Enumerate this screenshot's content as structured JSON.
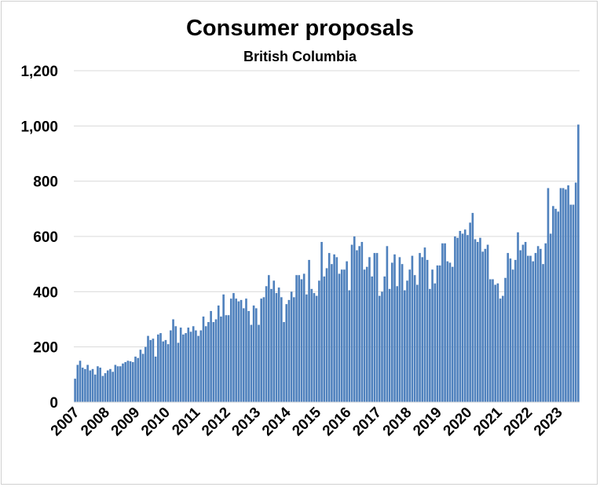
{
  "chart_data": {
    "type": "bar",
    "title": "Consumer proposals",
    "subtitle": "British Columbia",
    "xlabel": "",
    "ylabel": "",
    "ylim": [
      0,
      1200
    ],
    "yticks": [
      0,
      200,
      400,
      600,
      800,
      1000,
      1200
    ],
    "ytick_labels": [
      "0",
      "200",
      "400",
      "600",
      "800",
      "1,000",
      "1,200"
    ],
    "xtick_labels": [
      "2007",
      "2008",
      "2009",
      "2010",
      "2011",
      "2012",
      "2013",
      "2014",
      "2015",
      "2016",
      "2017",
      "2018",
      "2019",
      "2020",
      "2021",
      "2022",
      "2023"
    ],
    "grid": true,
    "bar_color": "#4f81bd",
    "series": [
      {
        "values": [
          85,
          135,
          150,
          125,
          120,
          135,
          115,
          120,
          100,
          130,
          125,
          95,
          105,
          115,
          120,
          110,
          135,
          130,
          130,
          140,
          145,
          150,
          148,
          145,
          165,
          160,
          190,
          175,
          200,
          240,
          225,
          230,
          165,
          245,
          250,
          220,
          225,
          210,
          260,
          300,
          275,
          215,
          270,
          245,
          250,
          270,
          255,
          275,
          260,
          240,
          260,
          310,
          275,
          290,
          330,
          290,
          300,
          350,
          310,
          390,
          315,
          315,
          375,
          395,
          375,
          365,
          370,
          340,
          375,
          330,
          280,
          350,
          340,
          280,
          375,
          380,
          420,
          460,
          410,
          440,
          395,
          415,
          380,
          290,
          355,
          370,
          400,
          380,
          460,
          460,
          445,
          465,
          390,
          515,
          410,
          395,
          385,
          440,
          580,
          455,
          485,
          540,
          500,
          535,
          525,
          465,
          480,
          480,
          510,
          405,
          570,
          600,
          550,
          565,
          580,
          480,
          490,
          525,
          455,
          540,
          540,
          385,
          400,
          455,
          565,
          410,
          505,
          535,
          420,
          525,
          500,
          405,
          440,
          480,
          530,
          460,
          425,
          540,
          525,
          560,
          515,
          410,
          480,
          430,
          495,
          495,
          575,
          575,
          510,
          505,
          490,
          600,
          595,
          620,
          610,
          625,
          605,
          650,
          685,
          590,
          580,
          595,
          545,
          555,
          570,
          445,
          445,
          425,
          430,
          375,
          385,
          450,
          540,
          520,
          480,
          515,
          615,
          550,
          570,
          580,
          530,
          530,
          510,
          540,
          565,
          555,
          500,
          575,
          775,
          610,
          710,
          700,
          690,
          775,
          775,
          770,
          785,
          715,
          715,
          795,
          1005
        ]
      }
    ]
  }
}
